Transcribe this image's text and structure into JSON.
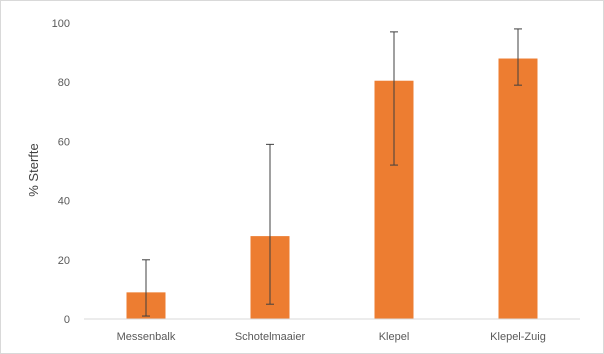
{
  "chart_data": {
    "type": "bar",
    "title": "",
    "xlabel": "",
    "ylabel": "% Sterfte",
    "categories": [
      "Messenbalk",
      "Schotelmaaier",
      "Klepel",
      "Klepel-Zuig"
    ],
    "values": [
      9,
      28,
      80.5,
      88
    ],
    "error_low": [
      1,
      5,
      52,
      79
    ],
    "error_high": [
      20,
      59,
      97,
      98
    ],
    "ylim": [
      0,
      100
    ],
    "yticks": [
      "0",
      "20",
      "40",
      "60",
      "80",
      "100"
    ],
    "grid": false,
    "legend": "none",
    "bar_color": "#ED7D31",
    "error_color": "#404040"
  }
}
